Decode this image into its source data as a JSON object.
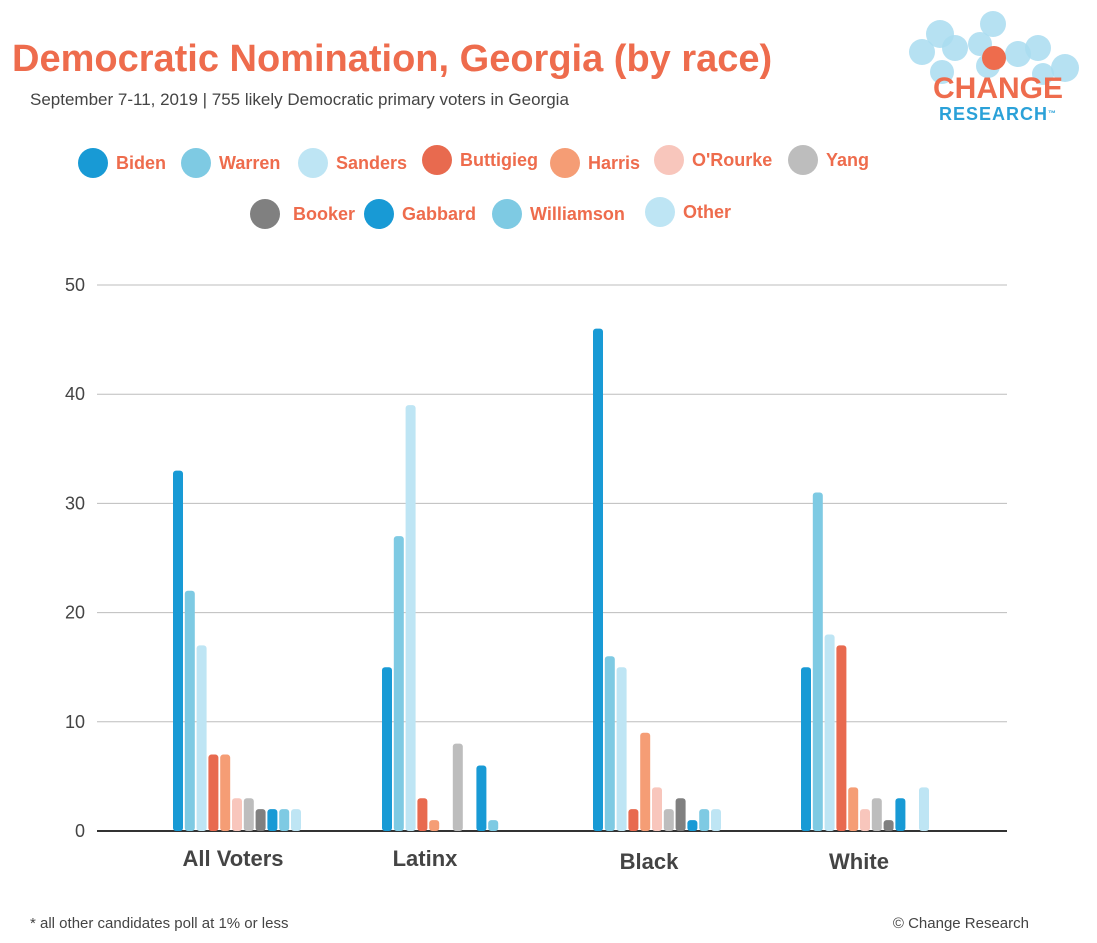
{
  "title": "Democratic Nomination, Georgia (by race)",
  "subtitle": "September 7-11, 2019  | 755 likely Democratic primary voters in Georgia",
  "logo": {
    "line1": "CHANGE",
    "line2": "RESEARCH",
    "tm": "™",
    "bubble_color": "#A9DCF0",
    "accent_color": "#EE6C4D"
  },
  "footnote": "* all other candidates poll at 1% or less",
  "copyright": "© Change Research",
  "chart_data": {
    "type": "bar",
    "title": "Democratic Nomination, Georgia (by race)",
    "categories": [
      "All Voters",
      "Latinx",
      "Black",
      "White"
    ],
    "ylim": [
      0,
      50
    ],
    "yticks": [
      0,
      10,
      20,
      30,
      40,
      50
    ],
    "grid": true,
    "legend_position": "top",
    "series": [
      {
        "name": "Biden",
        "color": "#189AD5",
        "values": [
          33,
          15,
          46,
          15
        ]
      },
      {
        "name": "Warren",
        "color": "#7ECAE3",
        "values": [
          22,
          27,
          16,
          31
        ]
      },
      {
        "name": "Sanders",
        "color": "#BEE5F4",
        "values": [
          17,
          39,
          15,
          18
        ]
      },
      {
        "name": "Buttigieg",
        "color": "#E86A4F",
        "values": [
          7,
          3,
          2,
          17
        ]
      },
      {
        "name": "Harris",
        "color": "#F59D75",
        "values": [
          7,
          1,
          9,
          4
        ]
      },
      {
        "name": "O'Rourke",
        "color": "#F8C6BC",
        "values": [
          3,
          0,
          4,
          2
        ]
      },
      {
        "name": "Yang",
        "color": "#BDBDBD",
        "values": [
          3,
          8,
          2,
          3
        ]
      },
      {
        "name": "Booker",
        "color": "#808080",
        "values": [
          2,
          0,
          3,
          1
        ]
      },
      {
        "name": "Gabbard",
        "color": "#189AD5",
        "values": [
          2,
          6,
          1,
          3
        ]
      },
      {
        "name": "Williamson",
        "color": "#7ECAE3",
        "values": [
          2,
          1,
          2,
          0
        ]
      },
      {
        "name": "Other",
        "color": "#BEE5F4",
        "values": [
          2,
          0,
          2,
          4
        ]
      }
    ]
  }
}
